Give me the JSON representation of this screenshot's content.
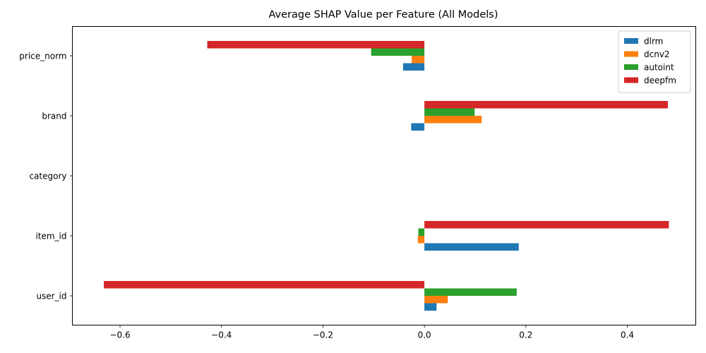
{
  "chart_data": {
    "type": "bar",
    "orientation": "horizontal",
    "title": "Average SHAP Value per Feature (All Models)",
    "xlabel": "",
    "ylabel": "",
    "categories": [
      "price_norm",
      "brand",
      "category",
      "item_id",
      "user_id"
    ],
    "series": [
      {
        "name": "dlrm",
        "color": "#1f77b4",
        "values": [
          -0.042,
          -0.026,
          0.0,
          0.186,
          0.024
        ]
      },
      {
        "name": "dcnv2",
        "color": "#ff7f0e",
        "values": [
          -0.025,
          0.113,
          0.0,
          -0.013,
          0.046
        ]
      },
      {
        "name": "autoint",
        "color": "#2ca02c",
        "values": [
          -0.105,
          0.099,
          0.0,
          -0.012,
          0.182
        ]
      },
      {
        "name": "deepfm",
        "color": "#d62728",
        "values": [
          -0.428,
          0.48,
          0.0,
          0.482,
          -0.632
        ]
      }
    ],
    "xlim": [
      -0.694,
      0.535
    ],
    "xticks": [
      -0.6,
      -0.4,
      -0.2,
      0.0,
      0.2,
      0.4
    ],
    "xtick_labels": [
      "−0.6",
      "−0.4",
      "−0.2",
      "0.0",
      "0.2",
      "0.4"
    ],
    "grid": false,
    "legend_position": "upper right"
  }
}
